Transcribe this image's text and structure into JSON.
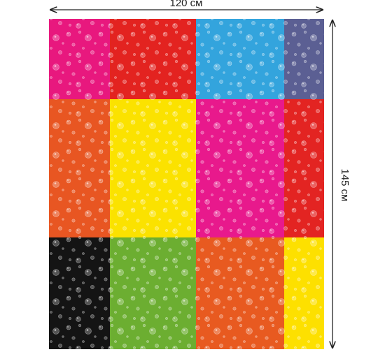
{
  "dimensions": {
    "width_label": "120 см",
    "height_label": "145 см"
  }
}
